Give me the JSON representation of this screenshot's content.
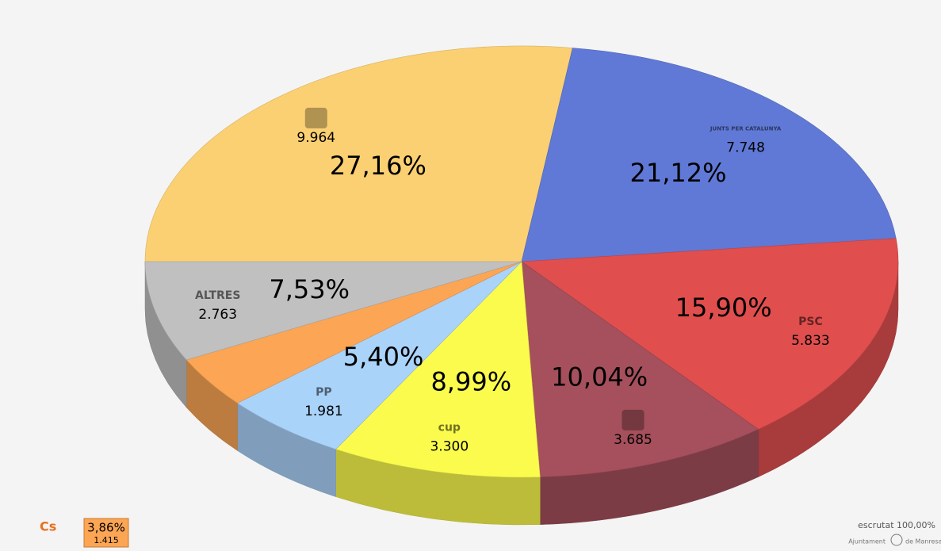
{
  "chart_data": {
    "type": "pie",
    "categories": [
      null,
      "JUNTS PER CATALUNYA",
      "PSC",
      null,
      "cup",
      "PP",
      "Cs",
      "ALTRES"
    ],
    "values": [
      27.16,
      21.12,
      15.9,
      10.04,
      8.99,
      5.4,
      3.86,
      7.53
    ],
    "value_labels": [
      "27,16%",
      "21,12%",
      "15,90%",
      "10,04%",
      "8,99%",
      "5,40%",
      "3,86%",
      "7,53%"
    ],
    "votes": [
      9964,
      7748,
      5833,
      3685,
      3300,
      1981,
      1415,
      2763
    ],
    "vote_labels": [
      "9.964",
      "7.748",
      "5.833",
      "3.685",
      "3.300",
      "1.981",
      "1.415",
      "2.763"
    ],
    "colors": [
      "#fbd073",
      "#6079d6",
      "#e04e4e",
      "#a5505c",
      "#fbfb4d",
      "#aad3fa",
      "#fba555",
      "#c0c0c0"
    ],
    "annotations": [
      "escrutat 100,00%",
      "Ajuntament",
      "de Manresa"
    ]
  }
}
